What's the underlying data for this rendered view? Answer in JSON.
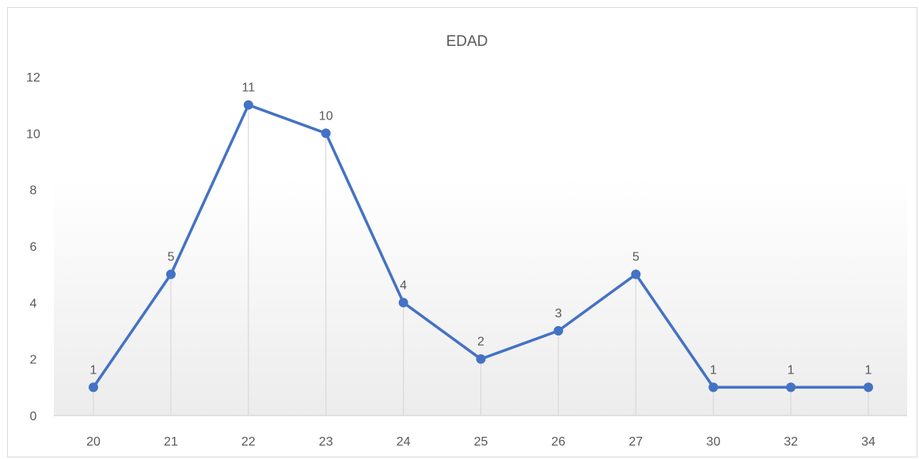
{
  "chart_data": {
    "type": "line",
    "title": "EDAD",
    "xlabel": "",
    "ylabel": "",
    "categories": [
      "20",
      "21",
      "22",
      "23",
      "24",
      "25",
      "26",
      "27",
      "30",
      "32",
      "34"
    ],
    "series": [
      {
        "values": [
          1,
          5,
          11,
          10,
          4,
          2,
          3,
          5,
          1,
          1,
          1
        ]
      }
    ],
    "data_labels": [
      "1",
      "5",
      "11",
      "10",
      "4",
      "2",
      "3",
      "5",
      "1",
      "1",
      "1"
    ],
    "y_ticks": [
      "0",
      "2",
      "4",
      "6",
      "8",
      "10",
      "12"
    ],
    "ylim": [
      0,
      12
    ],
    "grid": "vertical drop lines",
    "legend": "none",
    "colors": {
      "line": "#4472c4",
      "drop_line": "#d9d9d9",
      "axis": "#d9d9d9",
      "text": "#595959"
    }
  }
}
